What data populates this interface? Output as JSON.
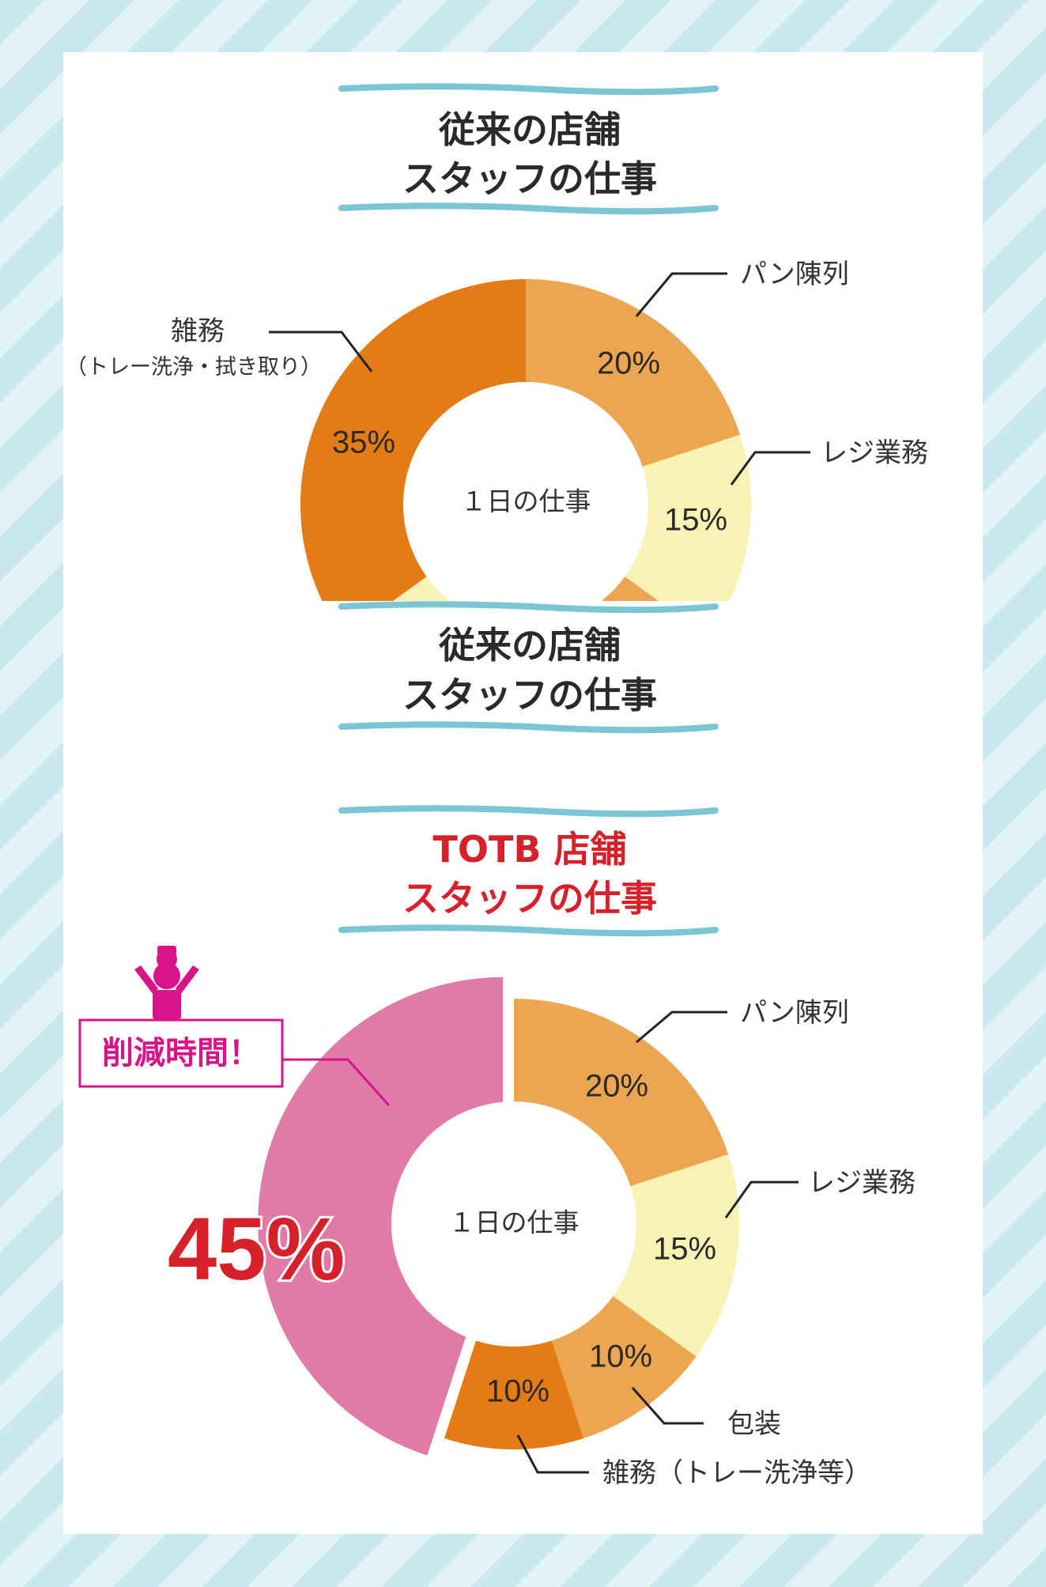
{
  "chart_data": [
    {
      "type": "pie",
      "title": "従来の店舗 スタッフの仕事",
      "title_lines": [
        "従来の店舗",
        "スタッフの仕事"
      ],
      "center_label": "１日の仕事",
      "slices": [
        {
          "label": "パン陳列",
          "value": 20,
          "display": "20%",
          "color": "#eca652"
        },
        {
          "label": "レジ業務",
          "value": 15,
          "display": "15%",
          "color": "#f8f2b4"
        },
        {
          "label": "雑務",
          "sublabel": "（トレー洗浄・拭き取り）",
          "value": 35,
          "display": "35%",
          "color": "#e57b14"
        }
      ]
    },
    {
      "type": "pie",
      "title": "TOTB 店舗 スタッフの仕事",
      "title_lines": [
        "TOTB 店舗",
        "スタッフの仕事"
      ],
      "center_label": "１日の仕事",
      "badge": "削減時間！",
      "slices": [
        {
          "label": "パン陳列",
          "value": 20,
          "display": "20%",
          "color": "#eca652"
        },
        {
          "label": "レジ業務",
          "value": 15,
          "display": "15%",
          "color": "#f8f2b4"
        },
        {
          "label": "包装",
          "value": 10,
          "display": "10%",
          "color": "#eca652"
        },
        {
          "label": "雑務（トレー洗浄等）",
          "value": 10,
          "display": "10%",
          "color": "#e57b14"
        },
        {
          "label": "削減時間！",
          "value": 45,
          "display": "45%",
          "color": "#e07ba8"
        }
      ]
    }
  ],
  "repeat_title_lines": [
    "従来の店舗",
    "スタッフの仕事"
  ]
}
